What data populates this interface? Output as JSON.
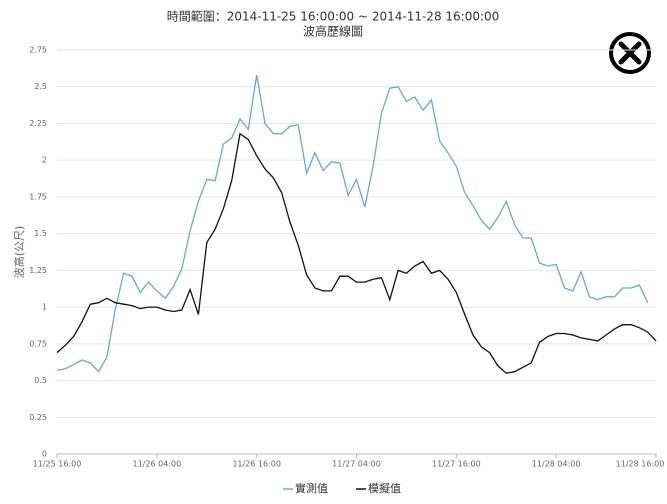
{
  "chart_data": {
    "type": "line",
    "title": "時間範圍：2014-11-25 16:00:00 ~ 2014-11-28 16:00:00",
    "subtitle": "波高歷線圖",
    "y_label": "波高(公尺)",
    "categories": [
      "11/25 16:00",
      null,
      null,
      null,
      null,
      null,
      null,
      null,
      null,
      null,
      null,
      null,
      "11/26 04:00",
      null,
      null,
      null,
      null,
      null,
      null,
      null,
      null,
      null,
      null,
      null,
      "11/26 16:00",
      null,
      null,
      null,
      null,
      null,
      null,
      null,
      null,
      null,
      null,
      null,
      "11/27 04:00",
      null,
      null,
      null,
      null,
      null,
      null,
      null,
      null,
      null,
      null,
      null,
      "11/27 16:00",
      null,
      null,
      null,
      null,
      null,
      null,
      null,
      null,
      null,
      null,
      null,
      "11/28 04:00",
      null,
      null,
      null,
      null,
      null,
      null,
      null,
      null,
      null,
      null,
      null,
      "11/28 16:00"
    ],
    "series": [
      {
        "name": "實測值",
        "color": "#6aa6e0",
        "values": [
          0.57,
          0.58,
          0.61,
          0.64,
          0.62,
          0.56,
          0.66,
          0.98,
          1.23,
          1.21,
          1.1,
          1.17,
          1.11,
          1.06,
          1.14,
          1.26,
          1.52,
          1.72,
          1.87,
          1.86,
          2.11,
          2.15,
          2.28,
          2.21,
          2.58,
          2.25,
          2.18,
          2.18,
          2.23,
          2.24,
          1.91,
          2.05,
          1.93,
          1.99,
          1.98,
          1.76,
          1.87,
          1.68,
          1.96,
          2.32,
          2.49,
          2.5,
          2.4,
          2.43,
          2.34,
          2.41,
          2.13,
          2.05,
          1.96,
          1.78,
          1.69,
          1.59,
          1.53,
          1.61,
          1.72,
          1.56,
          1.47,
          1.47,
          1.3,
          1.28,
          1.29,
          1.13,
          1.11,
          1.24,
          1.07,
          1.05,
          1.07,
          1.07,
          1.13,
          1.13,
          1.15,
          1.03,
          null
        ]
      },
      {
        "name": "模擬值",
        "color": "#111111",
        "values": [
          0.69,
          0.74,
          0.8,
          0.9,
          1.02,
          1.03,
          1.06,
          1.03,
          1.02,
          1.01,
          0.99,
          1.0,
          1.0,
          0.98,
          0.97,
          0.98,
          1.12,
          0.95,
          1.44,
          1.53,
          1.67,
          1.86,
          2.18,
          2.14,
          2.03,
          1.94,
          1.88,
          1.78,
          1.58,
          1.42,
          1.22,
          1.13,
          1.11,
          1.11,
          1.21,
          1.21,
          1.17,
          1.17,
          1.19,
          1.2,
          1.05,
          1.25,
          1.23,
          1.28,
          1.31,
          1.23,
          1.25,
          1.19,
          1.1,
          0.95,
          0.81,
          0.73,
          0.69,
          0.6,
          0.55,
          0.56,
          0.59,
          0.62,
          0.76,
          0.8,
          0.82,
          0.82,
          0.81,
          0.79,
          0.78,
          0.77,
          0.81,
          0.85,
          0.88,
          0.88,
          0.86,
          0.83,
          0.77
        ]
      }
    ],
    "ylim": [
      0,
      2.75
    ],
    "yticks": [
      0,
      0.25,
      0.5,
      0.75,
      1,
      1.25,
      1.5,
      1.75,
      2,
      2.25,
      2.5,
      2.75
    ],
    "grid": true,
    "legend": "bottom"
  }
}
